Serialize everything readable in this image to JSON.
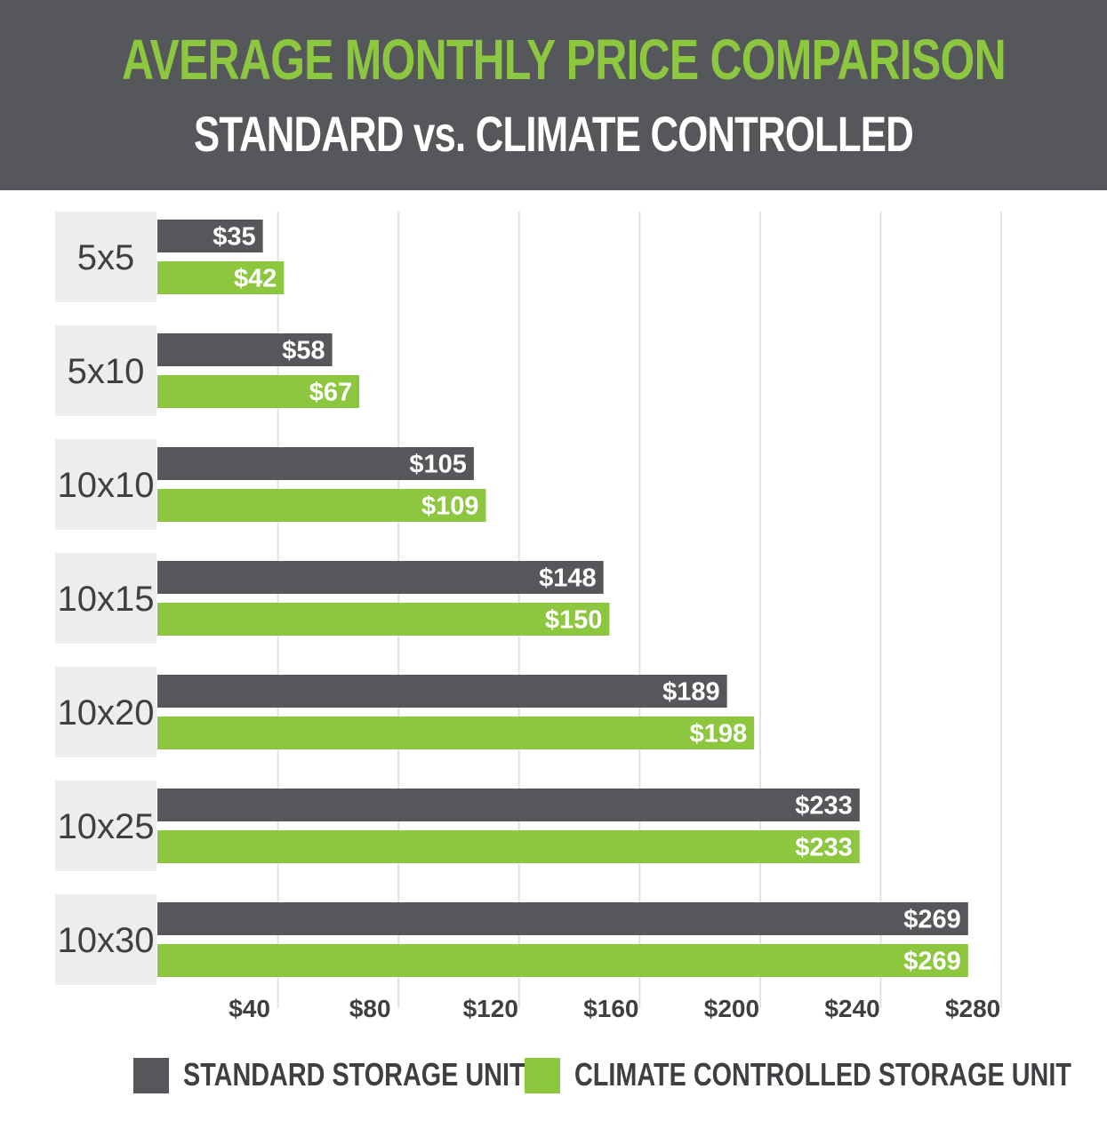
{
  "colors": {
    "header_bg": "#55575a",
    "title": "#8dc63f",
    "standard": "#55575a",
    "climate": "#8dc63f",
    "category_bg": "#ededed",
    "gridline": "#e2e2e2",
    "text_dark": "#3d3f42"
  },
  "header": {
    "title": "AVERAGE MONTHLY PRICE COMPARISON",
    "subtitle": "STANDARD vs. CLIMATE CONTROLLED"
  },
  "legend": {
    "standard_label": "STANDARD STORAGE UNIT",
    "climate_label": "CLIMATE CONTROLLED STORAGE UNIT"
  },
  "chart_data": {
    "type": "bar",
    "orientation": "horizontal",
    "title": "AVERAGE MONTHLY PRICE COMPARISON",
    "subtitle": "STANDARD vs. CLIMATE CONTROLLED",
    "xlabel": "",
    "ylabel": "",
    "xlim": [
      0,
      290
    ],
    "grid": true,
    "legend_position": "bottom",
    "categories": [
      "5x5",
      "5x10",
      "10x10",
      "10x15",
      "10x20",
      "10x25",
      "10x30"
    ],
    "series": [
      {
        "name": "STANDARD STORAGE UNIT",
        "values": [
          35,
          58,
          105,
          148,
          189,
          233,
          269
        ],
        "labels": [
          "$35",
          "$58",
          "$105",
          "$148",
          "$189",
          "$233",
          "$269"
        ]
      },
      {
        "name": "CLIMATE CONTROLLED STORAGE UNIT",
        "values": [
          42,
          67,
          109,
          150,
          198,
          233,
          269
        ],
        "labels": [
          "$42",
          "$67",
          "$109",
          "$150",
          "$198",
          "$233",
          "$269"
        ]
      }
    ],
    "ticks": [
      40,
      80,
      120,
      160,
      200,
      240,
      280
    ],
    "tick_labels": [
      "$40",
      "$80",
      "$120",
      "$160",
      "$200",
      "$240",
      "$280"
    ]
  }
}
